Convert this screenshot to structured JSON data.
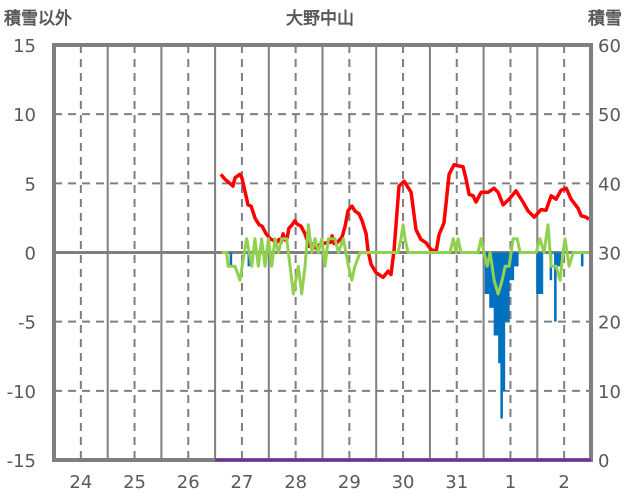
{
  "chart_data": {
    "type": "line",
    "title": "大野中山",
    "ylabel_left": "積雪以外",
    "ylabel_right": "積雪",
    "x_unit": "hours from start of day 24",
    "xlim": [
      0,
      240
    ],
    "ylim_left": [
      -15,
      15
    ],
    "ylim_right": [
      0,
      60
    ],
    "left_ticks": [
      "15",
      "10",
      "5",
      "0",
      "-5",
      "-10",
      "-15"
    ],
    "right_ticks": [
      "60",
      "50",
      "40",
      "30",
      "20",
      "10",
      "0"
    ],
    "x_tick_labels": [
      "24",
      "25",
      "26",
      "27",
      "28",
      "29",
      "30",
      "31",
      "1",
      "2"
    ],
    "grid": true,
    "colors": {
      "snow_depth": "#ff0000",
      "other": "#92d050",
      "bars": "#0070c0",
      "baseline": "#7030a0",
      "axis": "#7f7f7f"
    },
    "series": [
      {
        "name": "snow_depth",
        "axis": "right",
        "kind": "line",
        "points": [
          [
            74.6,
            41.3
          ],
          [
            76.4,
            40.6
          ],
          [
            78.2,
            40.1
          ],
          [
            80.0,
            39.6
          ],
          [
            80.9,
            40.8
          ],
          [
            83.1,
            41.3
          ],
          [
            84.0,
            40.8
          ],
          [
            85.8,
            38.2
          ],
          [
            86.7,
            36.9
          ],
          [
            88.1,
            36.7
          ],
          [
            89.9,
            34.9
          ],
          [
            91.7,
            34.0
          ],
          [
            93.0,
            33.8
          ],
          [
            94.8,
            32.7
          ],
          [
            96.6,
            32.0
          ],
          [
            98.3,
            31.7
          ],
          [
            99.7,
            31.5
          ],
          [
            100.6,
            31.9
          ],
          [
            101.5,
            31.5
          ],
          [
            102.4,
            32.7
          ],
          [
            103.3,
            31.8
          ],
          [
            104.2,
            32.1
          ],
          [
            105.0,
            33.5
          ],
          [
            106.4,
            34.0
          ],
          [
            107.7,
            34.6
          ],
          [
            108.6,
            34.1
          ],
          [
            110.4,
            33.8
          ],
          [
            112.2,
            32.7
          ],
          [
            114.0,
            30.9
          ],
          [
            114.9,
            31.3
          ],
          [
            116.2,
            30.9
          ],
          [
            117.1,
            30.6
          ],
          [
            118.9,
            31.2
          ],
          [
            121.6,
            31.4
          ],
          [
            123.8,
            31.5
          ],
          [
            124.3,
            32.4
          ],
          [
            125.2,
            31.3
          ],
          [
            126.5,
            31.4
          ],
          [
            128.7,
            32.2
          ],
          [
            130.1,
            33.8
          ],
          [
            131.4,
            36.0
          ],
          [
            132.3,
            36.4
          ],
          [
            133.2,
            36.7
          ],
          [
            134.5,
            36.0
          ],
          [
            136.3,
            35.6
          ],
          [
            137.7,
            34.6
          ],
          [
            139.5,
            32.7
          ],
          [
            140.4,
            30.2
          ],
          [
            141.7,
            28.3
          ],
          [
            143.9,
            27.1
          ],
          [
            147.1,
            26.4
          ],
          [
            149.3,
            27.3
          ],
          [
            150.6,
            26.8
          ],
          [
            152.0,
            30.4
          ],
          [
            154.2,
            39.6
          ],
          [
            156.5,
            40.3
          ],
          [
            159.6,
            38.7
          ],
          [
            161.8,
            33.3
          ],
          [
            164.0,
            31.9
          ],
          [
            166.3,
            31.4
          ],
          [
            168.5,
            30.4
          ],
          [
            170.8,
            30.2
          ],
          [
            172.1,
            32.6
          ],
          [
            174.3,
            34.3
          ],
          [
            176.6,
            41.3
          ],
          [
            178.8,
            42.7
          ],
          [
            181.0,
            42.5
          ],
          [
            182.8,
            42.4
          ],
          [
            184.2,
            40.6
          ],
          [
            185.5,
            38.4
          ],
          [
            187.3,
            38.2
          ],
          [
            188.6,
            37.3
          ],
          [
            190.9,
            38.7
          ],
          [
            194.0,
            38.7
          ],
          [
            196.7,
            39.3
          ],
          [
            198.5,
            38.7
          ],
          [
            200.7,
            36.9
          ],
          [
            203.4,
            37.7
          ],
          [
            206.5,
            38.9
          ],
          [
            209.6,
            37.3
          ],
          [
            211.9,
            36.0
          ],
          [
            214.6,
            35.1
          ],
          [
            217.7,
            36.2
          ],
          [
            219.9,
            36.1
          ],
          [
            222.2,
            38.2
          ],
          [
            224.4,
            37.7
          ],
          [
            226.6,
            39.0
          ],
          [
            228.9,
            39.3
          ],
          [
            231.1,
            37.7
          ],
          [
            234.2,
            36.4
          ],
          [
            235.6,
            35.3
          ],
          [
            237.8,
            35.1
          ],
          [
            239.1,
            34.8
          ]
        ]
      },
      {
        "name": "other_line",
        "axis": "left",
        "kind": "line",
        "points": [
          [
            75.0,
            0
          ],
          [
            77.2,
            0
          ],
          [
            77.8,
            -1
          ],
          [
            80.9,
            -1
          ],
          [
            83.1,
            -2
          ],
          [
            86.1,
            1
          ],
          [
            88.4,
            -1
          ],
          [
            89.8,
            1
          ],
          [
            91.3,
            -1
          ],
          [
            92.8,
            1
          ],
          [
            94.3,
            -1
          ],
          [
            95.8,
            1
          ],
          [
            97.3,
            -1
          ],
          [
            98.8,
            1
          ],
          [
            100.3,
            0
          ],
          [
            101.8,
            1
          ],
          [
            104.0,
            1
          ],
          [
            105.5,
            -1
          ],
          [
            107.0,
            -3
          ],
          [
            109.2,
            -1
          ],
          [
            110.7,
            -3
          ],
          [
            112.2,
            -1
          ],
          [
            113.7,
            2
          ],
          [
            115.2,
            0
          ],
          [
            116.7,
            1
          ],
          [
            118.1,
            0
          ],
          [
            119.7,
            1
          ],
          [
            121.1,
            -1
          ],
          [
            122.6,
            1
          ],
          [
            125.6,
            1
          ],
          [
            127.1,
            0
          ],
          [
            129.3,
            1
          ],
          [
            131.6,
            -1
          ],
          [
            133.1,
            -2
          ],
          [
            134.5,
            -1
          ],
          [
            136.8,
            0
          ],
          [
            153.8,
            0
          ],
          [
            155.1,
            1
          ],
          [
            156.0,
            2
          ],
          [
            156.9,
            1
          ],
          [
            158.2,
            0
          ],
          [
            177.0,
            0
          ],
          [
            178.4,
            1
          ],
          [
            179.7,
            0
          ],
          [
            180.6,
            1
          ],
          [
            181.9,
            0
          ],
          [
            189.5,
            0
          ],
          [
            190.9,
            1
          ],
          [
            192.2,
            0
          ],
          [
            193.6,
            -1
          ],
          [
            194.9,
            0
          ],
          [
            196.7,
            -2
          ],
          [
            198.5,
            -3
          ],
          [
            200.3,
            -2
          ],
          [
            201.6,
            -1
          ],
          [
            203.4,
            -1
          ],
          [
            205.2,
            1
          ],
          [
            207.0,
            1
          ],
          [
            208.3,
            0
          ],
          [
            215.5,
            0
          ],
          [
            217.2,
            1
          ],
          [
            219.0,
            0
          ],
          [
            220.8,
            2
          ],
          [
            222.2,
            -1
          ],
          [
            224.4,
            -1
          ],
          [
            226.2,
            -2
          ],
          [
            227.5,
            0
          ],
          [
            228.4,
            1
          ],
          [
            230.2,
            -1
          ],
          [
            232.0,
            0
          ],
          [
            240.0,
            0
          ]
        ]
      },
      {
        "name": "other_bars",
        "axis": "left",
        "kind": "bar",
        "points": [
          [
            79,
            -1
          ],
          [
            87,
            -1
          ],
          [
            121,
            -1
          ],
          [
            193,
            -3
          ],
          [
            194,
            -3
          ],
          [
            195,
            -4
          ],
          [
            196,
            -4
          ],
          [
            197,
            -6
          ],
          [
            198,
            -6
          ],
          [
            199,
            -8
          ],
          [
            200,
            -12
          ],
          [
            201,
            -10
          ],
          [
            202,
            -5
          ],
          [
            203,
            -5
          ],
          [
            204,
            -2
          ],
          [
            205,
            -2
          ],
          [
            206,
            -1
          ],
          [
            207,
            -1
          ],
          [
            216,
            -3
          ],
          [
            217,
            -3
          ],
          [
            218,
            -3
          ],
          [
            222,
            -2
          ],
          [
            224,
            -5
          ],
          [
            225,
            -1
          ],
          [
            226,
            -1
          ],
          [
            236,
            -1
          ]
        ]
      },
      {
        "name": "baseline",
        "axis": "right",
        "kind": "line",
        "points": [
          [
            72,
            0
          ],
          [
            240,
            0
          ]
        ]
      }
    ]
  }
}
